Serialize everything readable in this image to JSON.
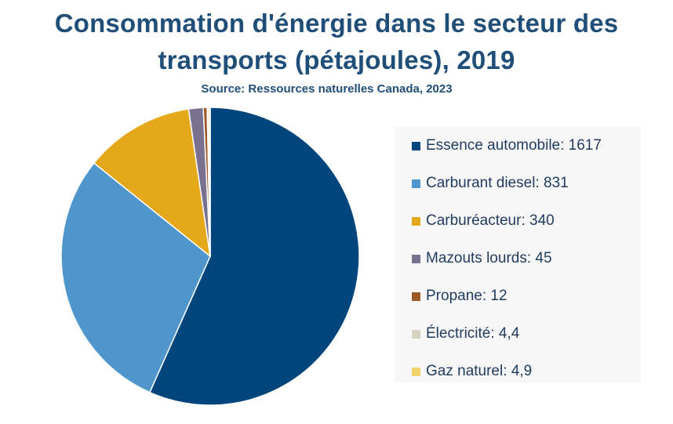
{
  "chart_data": {
    "type": "pie",
    "title_line1": "Consommation d'énergie dans le secteur des",
    "title_line2": "transports (pétajoules), 2019",
    "subtitle": "Source: Ressources naturelles Canada, 2023",
    "legend_position": "right",
    "slices": [
      {
        "label": "Essence automobile",
        "value": 1617,
        "display": "1617",
        "color": "#01457d"
      },
      {
        "label": "Carburant diesel",
        "value": 831,
        "display": "831",
        "color": "#4f96cc"
      },
      {
        "label": "Carburéacteur",
        "value": 340,
        "display": "340",
        "color": "#e4a81a"
      },
      {
        "label": "Mazouts lourds",
        "value": 45,
        "display": "45",
        "color": "#7a7090"
      },
      {
        "label": "Propane",
        "value": 12,
        "display": "12",
        "color": "#9c5a2a"
      },
      {
        "label": "Électricité",
        "value": 4.4,
        "display": "4,4",
        "color": "#d9d3c1"
      },
      {
        "label": "Gaz naturel",
        "value": 4.9,
        "display": "4,9",
        "color": "#f2d26b"
      }
    ]
  }
}
